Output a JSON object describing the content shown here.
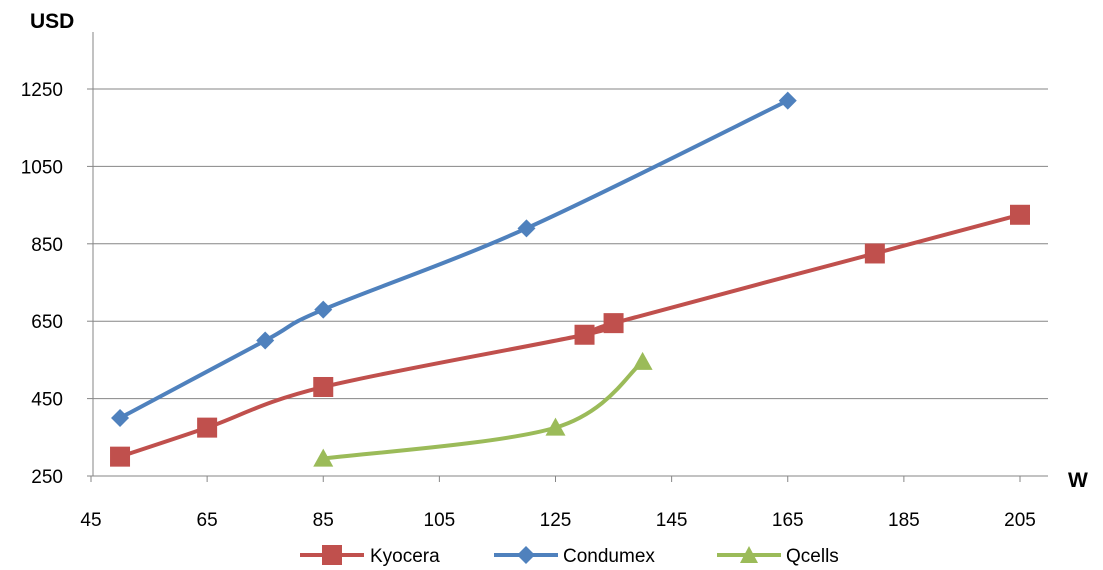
{
  "chart_data": {
    "type": "line",
    "xlabel": "W",
    "ylabel": "USD",
    "xlim": [
      45,
      205
    ],
    "ylim": [
      250,
      1250
    ],
    "x_ticks": [
      45,
      65,
      85,
      105,
      125,
      145,
      165,
      185,
      205
    ],
    "y_ticks": [
      250,
      450,
      650,
      850,
      1050,
      1250
    ],
    "grid": "horizontal",
    "legend_position": "bottom",
    "series": [
      {
        "name": "Kyocera",
        "color": "#C0504D",
        "marker": "square",
        "smooth": true,
        "points": [
          [
            50,
            300
          ],
          [
            65,
            375
          ],
          [
            85,
            480
          ],
          [
            130,
            615
          ],
          [
            135,
            645
          ],
          [
            180,
            825
          ],
          [
            205,
            925
          ]
        ]
      },
      {
        "name": "Condumex",
        "color": "#4F81BD",
        "marker": "diamond",
        "smooth": true,
        "points": [
          [
            50,
            400
          ],
          [
            75,
            600
          ],
          [
            85,
            680
          ],
          [
            120,
            890
          ],
          [
            165,
            1220
          ]
        ]
      },
      {
        "name": "Qcells",
        "color": "#9BBB59",
        "marker": "triangle",
        "smooth": true,
        "points": [
          [
            85,
            295
          ],
          [
            125,
            375
          ],
          [
            140,
            545
          ]
        ]
      }
    ]
  }
}
